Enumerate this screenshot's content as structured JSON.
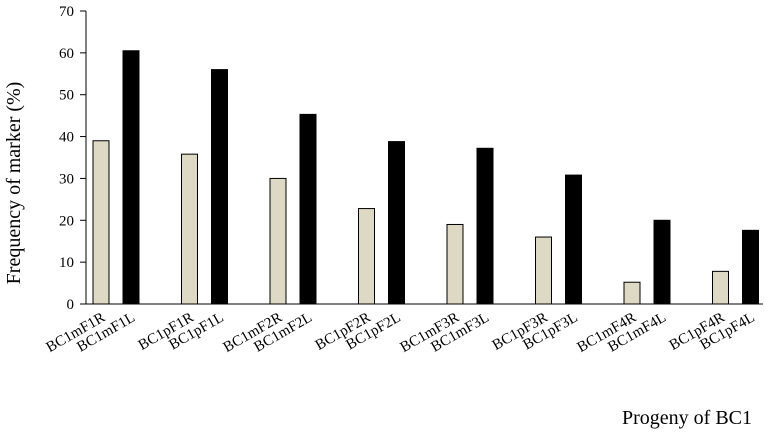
{
  "chart_data": {
    "type": "bar",
    "title": "",
    "ylabel": "Frequency of marker (%)",
    "xlabel": "Progeny of BC1",
    "ylim": [
      0,
      70
    ],
    "yticks": [
      0,
      10,
      20,
      30,
      40,
      50,
      60,
      70
    ],
    "grid": false,
    "legend": "none",
    "groups": [
      {
        "labels": [
          "BC1mF1R",
          "BC1mF1L"
        ],
        "values": [
          39,
          60.5
        ]
      },
      {
        "labels": [
          "BC1pF1R",
          "BC1pF1L"
        ],
        "values": [
          35.8,
          56
        ]
      },
      {
        "labels": [
          "BC1mF2R",
          "BC1mF2L"
        ],
        "values": [
          30,
          45.3
        ]
      },
      {
        "labels": [
          "BC1pF2R",
          "BC1pF2L"
        ],
        "values": [
          22.8,
          38.8
        ]
      },
      {
        "labels": [
          "BC1mF3R",
          "BC1mF3L"
        ],
        "values": [
          19,
          37.2
        ]
      },
      {
        "labels": [
          "BC1pF3R",
          "BC1pF3L"
        ],
        "values": [
          16,
          30.8
        ]
      },
      {
        "labels": [
          "BC1mF4R",
          "BC1mF4L"
        ],
        "values": [
          5.2,
          20
        ]
      },
      {
        "labels": [
          "BC1pF4R",
          "BC1pF4L"
        ],
        "values": [
          7.8,
          17.6
        ]
      }
    ],
    "colors": {
      "R": "#ddd9c4",
      "L": "#000000",
      "outline": "#000000"
    }
  }
}
